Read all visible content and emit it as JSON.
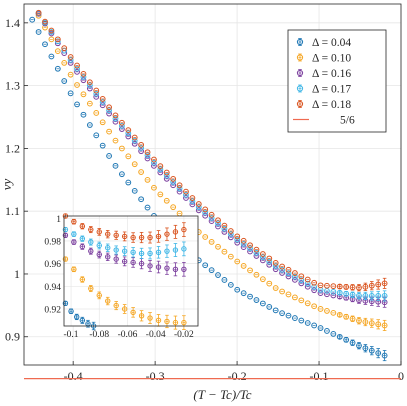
{
  "chart_data": [
    {
      "type": "scatter",
      "xlabel": "(T − Tc)/Tc",
      "ylabel": "νy",
      "xlim": [
        -0.46,
        0.0
      ],
      "ylim": [
        0.855,
        1.43
      ],
      "xticks": [
        -0.4,
        -0.3,
        -0.2,
        -0.1,
        0
      ],
      "xtick_labels": [
        "-0.4",
        "-0.3",
        "-0.2",
        "-0.1",
        "0"
      ],
      "yticks": [
        0.9,
        1.0,
        1.1,
        1.2,
        1.3,
        1.4
      ],
      "ytick_labels": [
        "0.9",
        "1",
        "1.1",
        "1.2",
        "1.3",
        "1.4"
      ],
      "grid": true,
      "legend_position": "top-right",
      "reference_line": {
        "label": "5/6",
        "y": 0.8333,
        "color": "#ef6a50"
      },
      "series": [
        {
          "name": "Δ = 0.04",
          "color": "#1f77b4",
          "x": [
            -0.45,
            -0.4,
            -0.35,
            -0.3,
            -0.25,
            -0.2,
            -0.15,
            -0.1,
            -0.05,
            -0.02
          ],
          "y": [
            1.405,
            1.28,
            1.175,
            1.09,
            1.025,
            0.975,
            0.94,
            0.915,
            0.885,
            0.87
          ]
        },
        {
          "name": "Δ = 0.10",
          "color": "#f5a623",
          "x": [
            -0.45,
            -0.4,
            -0.35,
            -0.3,
            -0.25,
            -0.2,
            -0.15,
            -0.1,
            -0.05,
            -0.02
          ],
          "y": [
            1.43,
            1.31,
            1.215,
            1.135,
            1.07,
            1.02,
            0.975,
            0.945,
            0.925,
            0.918
          ]
        },
        {
          "name": "Δ = 0.16",
          "color": "#7b3f9e",
          "x": [
            -0.45,
            -0.4,
            -0.35,
            -0.3,
            -0.25,
            -0.2,
            -0.15,
            -0.1,
            -0.05,
            -0.02
          ],
          "y": [
            1.43,
            1.33,
            1.245,
            1.17,
            1.105,
            1.05,
            1.005,
            0.97,
            0.958,
            0.955
          ]
        },
        {
          "name": "Δ = 0.17",
          "color": "#3fb6e6",
          "x": [
            -0.45,
            -0.4,
            -0.35,
            -0.3,
            -0.25,
            -0.2,
            -0.15,
            -0.1,
            -0.05,
            -0.02
          ],
          "y": [
            1.43,
            1.335,
            1.25,
            1.175,
            1.11,
            1.055,
            1.01,
            0.975,
            0.965,
            0.965
          ]
        },
        {
          "name": "Δ = 0.18",
          "color": "#d9531e",
          "x": [
            -0.45,
            -0.4,
            -0.35,
            -0.3,
            -0.25,
            -0.2,
            -0.15,
            -0.1,
            -0.05,
            -0.02
          ],
          "y": [
            1.43,
            1.34,
            1.255,
            1.18,
            1.115,
            1.06,
            1.015,
            0.982,
            0.978,
            0.985
          ]
        }
      ]
    },
    {
      "type": "scatter",
      "role": "inset",
      "xlim": [
        -0.105,
        -0.01
      ],
      "ylim": [
        0.905,
        1.002
      ],
      "xticks": [
        -0.1,
        -0.08,
        -0.06,
        -0.04,
        -0.02
      ],
      "xtick_labels": [
        "-0.1",
        "-0.08",
        "-0.06",
        "-0.04",
        "-0.02"
      ],
      "yticks": [
        0.92,
        0.94,
        0.96,
        0.98,
        1.0
      ],
      "ytick_labels": [
        "0.92",
        "0.94",
        "0.96",
        "0.98",
        "1"
      ],
      "grid": true,
      "series": [
        {
          "name": "Δ = 0.04",
          "color": "#1f77b4",
          "x": [
            -0.104,
            -0.1,
            -0.096,
            -0.092,
            -0.088,
            -0.084
          ],
          "y": [
            0.925,
            0.918,
            0.913,
            0.91,
            0.907,
            0.905
          ]
        },
        {
          "name": "Δ = 0.10",
          "color": "#f5a623",
          "x": [
            -0.104,
            -0.098,
            -0.092,
            -0.086,
            -0.08,
            -0.074,
            -0.068,
            -0.062,
            -0.056,
            -0.05,
            -0.044,
            -0.038,
            -0.032,
            -0.026,
            -0.02
          ],
          "y": [
            0.964,
            0.955,
            0.946,
            0.938,
            0.932,
            0.927,
            0.923,
            0.92,
            0.917,
            0.914,
            0.912,
            0.91,
            0.909,
            0.908,
            0.908
          ]
        },
        {
          "name": "Δ = 0.16",
          "color": "#7b3f9e",
          "x": [
            -0.104,
            -0.098,
            -0.092,
            -0.086,
            -0.08,
            -0.074,
            -0.068,
            -0.062,
            -0.056,
            -0.05,
            -0.044,
            -0.038,
            -0.032,
            -0.026,
            -0.02
          ],
          "y": [
            0.985,
            0.979,
            0.975,
            0.971,
            0.968,
            0.966,
            0.964,
            0.962,
            0.961,
            0.96,
            0.958,
            0.957,
            0.956,
            0.955,
            0.955
          ]
        },
        {
          "name": "Δ = 0.17",
          "color": "#3fb6e6",
          "x": [
            -0.104,
            -0.098,
            -0.092,
            -0.086,
            -0.08,
            -0.074,
            -0.068,
            -0.062,
            -0.056,
            -0.05,
            -0.044,
            -0.038,
            -0.032,
            -0.026,
            -0.02
          ],
          "y": [
            0.99,
            0.986,
            0.982,
            0.979,
            0.976,
            0.974,
            0.972,
            0.971,
            0.97,
            0.969,
            0.969,
            0.97,
            0.971,
            0.972,
            0.973
          ]
        },
        {
          "name": "Δ = 0.18",
          "color": "#d9531e",
          "x": [
            -0.104,
            -0.098,
            -0.092,
            -0.086,
            -0.08,
            -0.074,
            -0.068,
            -0.062,
            -0.056,
            -0.05,
            -0.044,
            -0.038,
            -0.032,
            -0.026,
            -0.02
          ],
          "y": [
            1.002,
            0.997,
            0.993,
            0.99,
            0.988,
            0.986,
            0.985,
            0.984,
            0.983,
            0.983,
            0.983,
            0.984,
            0.986,
            0.988,
            0.99
          ]
        }
      ]
    }
  ]
}
